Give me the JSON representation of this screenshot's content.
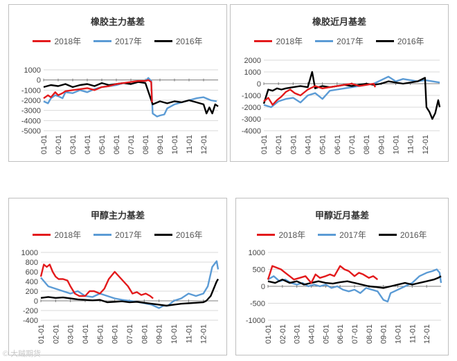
{
  "colors": {
    "s2018": "#e31a1c",
    "s2017": "#5b9bd5",
    "s2016": "#000000",
    "grid": "#d9d9d9",
    "axis": "#7f7f7f"
  },
  "months": [
    "01-01",
    "02-01",
    "03-01",
    "04-01",
    "05-01",
    "06-01",
    "07-01",
    "08-01",
    "09-01",
    "10-01",
    "11-01",
    "12-01"
  ],
  "watermark": "© 大贼期货",
  "chart_data": [
    {
      "type": "line",
      "title": "橡胶主力基差",
      "ylim": [
        -5000,
        1000
      ],
      "yticks": [
        1000,
        0,
        -1000,
        -2000,
        -3000,
        -4000,
        -5000
      ],
      "ytick_labels": [
        "1000",
        "0",
        "-1000",
        "-2000",
        "-3000",
        "-4000",
        "-5000"
      ],
      "series": [
        {
          "name": "2018年",
          "key": "s2018",
          "x": [
            0,
            0.3,
            0.5,
            0.8,
            1.0,
            1.3,
            1.5,
            2.0,
            2.5,
            3.0,
            3.5,
            4.0,
            4.5,
            5.0,
            5.5,
            6.0,
            6.5,
            7.0,
            7.2,
            7.4,
            7.45
          ],
          "y": [
            -1800,
            -1500,
            -1700,
            -1200,
            -1500,
            -1300,
            -1100,
            -1000,
            -900,
            -800,
            -1000,
            -700,
            -600,
            -400,
            -300,
            -200,
            -100,
            -100,
            0,
            -200,
            -2200
          ]
        },
        {
          "name": "2017年",
          "key": "s2017",
          "x": [
            0,
            0.3,
            0.5,
            0.8,
            1.0,
            1.3,
            1.5,
            2.0,
            2.5,
            3.0,
            3.5,
            4.0,
            4.5,
            5.0,
            5.5,
            6.0,
            6.5,
            7.0,
            7.2,
            7.4,
            7.5,
            7.8,
            8.0,
            8.3,
            8.5,
            9.0,
            9.5,
            10.0,
            10.5,
            11.0,
            11.5,
            11.9
          ],
          "y": [
            -2100,
            -2300,
            -1800,
            -1500,
            -1600,
            -1800,
            -1200,
            -1300,
            -1000,
            -1200,
            -900,
            -700,
            -600,
            -500,
            -300,
            -400,
            -200,
            -100,
            200,
            -100,
            -3300,
            -3600,
            -3500,
            -3400,
            -2800,
            -2400,
            -2200,
            -2000,
            -1800,
            -1700,
            -2000,
            -2100
          ]
        },
        {
          "name": "2016年",
          "key": "s2016",
          "x": [
            0,
            0.5,
            1.0,
            1.5,
            2.0,
            2.5,
            3.0,
            3.5,
            4.0,
            4.5,
            5.0,
            5.5,
            6.0,
            6.5,
            7.0,
            7.5,
            8.0,
            8.5,
            9.0,
            9.5,
            10.0,
            10.5,
            11.0,
            11.2,
            11.4,
            11.6,
            11.8,
            12.0
          ],
          "y": [
            -700,
            -500,
            -600,
            -400,
            -700,
            -500,
            -400,
            -600,
            -300,
            -500,
            -400,
            -300,
            -400,
            -200,
            -300,
            -2400,
            -2100,
            -2300,
            -2100,
            -2200,
            -2000,
            -2200,
            -2400,
            -3300,
            -2700,
            -3300,
            -2400,
            -2600
          ]
        }
      ]
    },
    {
      "type": "line",
      "title": "橡胶近月基差",
      "ylim": [
        -4000,
        2000
      ],
      "yticks": [
        2000,
        1000,
        0,
        -1000,
        -2000,
        -3000,
        -4000
      ],
      "ytick_labels": [
        "2000",
        "1000",
        "0",
        "-1000",
        "-2000",
        "-3000",
        "-4000"
      ],
      "series": [
        {
          "name": "2018年",
          "key": "s2018",
          "x": [
            0,
            0.3,
            0.6,
            0.9,
            1.2,
            1.5,
            1.8,
            2.1,
            2.5,
            3.0,
            3.5,
            4.0,
            4.5,
            5.0,
            5.5,
            6.0,
            6.5,
            7.0,
            7.5,
            7.6
          ],
          "y": [
            -1500,
            -1200,
            -1800,
            -1400,
            -1100,
            -700,
            -500,
            -800,
            -1000,
            -500,
            -200,
            -400,
            -300,
            -200,
            -100,
            0,
            -200,
            -100,
            0,
            -300
          ]
        },
        {
          "name": "2017年",
          "key": "s2017",
          "x": [
            0,
            0.5,
            1.0,
            1.5,
            2.0,
            2.5,
            3.0,
            3.5,
            4.0,
            4.5,
            5.0,
            5.5,
            6.0,
            6.5,
            7.0,
            7.5,
            8.0,
            8.5,
            9.0,
            9.5,
            10.0,
            10.5,
            11.0,
            11.5,
            12.0
          ],
          "y": [
            -1800,
            -2000,
            -1500,
            -1300,
            -1200,
            -1600,
            -1000,
            -800,
            -1300,
            -600,
            -500,
            -400,
            -300,
            -200,
            -100,
            0,
            300,
            600,
            200,
            400,
            300,
            200,
            300,
            200,
            100
          ]
        },
        {
          "name": "2016年",
          "key": "s2016",
          "x": [
            0,
            0.3,
            0.6,
            0.9,
            1.2,
            1.5,
            2.0,
            2.5,
            3.0,
            3.3,
            3.5,
            3.7,
            4.0,
            4.5,
            5.0,
            5.5,
            6.0,
            6.5,
            7.0,
            7.5,
            8.0,
            8.5,
            9.0,
            9.5,
            10.0,
            10.5,
            11.0,
            11.1,
            11.3,
            11.5,
            11.7,
            11.9,
            12.0
          ],
          "y": [
            -1700,
            -500,
            -600,
            -400,
            -500,
            -400,
            -300,
            -200,
            -300,
            1000,
            -400,
            -300,
            -200,
            -300,
            -200,
            -100,
            -200,
            -100,
            0,
            -100,
            0,
            200,
            100,
            0,
            100,
            200,
            500,
            -2000,
            -2400,
            -3000,
            -2500,
            -1400,
            -2000
          ]
        }
      ]
    },
    {
      "type": "line",
      "title": "甲醇主力基差",
      "ylim": [
        -400,
        1000
      ],
      "yticks": [
        1000,
        800,
        600,
        400,
        200,
        0,
        -200,
        -400
      ],
      "ytick_labels": [
        "1000",
        "800",
        "600",
        "400",
        "200",
        "0",
        "-200",
        "-400"
      ],
      "series": [
        {
          "name": "2018年",
          "key": "s2018",
          "x": [
            0,
            0.2,
            0.4,
            0.6,
            0.8,
            1.0,
            1.2,
            1.5,
            1.8,
            2.0,
            2.3,
            2.6,
            3.0,
            3.3,
            3.6,
            4.0,
            4.3,
            4.6,
            5.0,
            5.3,
            5.6,
            5.9,
            6.2,
            6.5,
            6.8,
            7.1,
            7.4,
            7.6
          ],
          "y": [
            500,
            750,
            700,
            750,
            600,
            500,
            450,
            450,
            420,
            300,
            150,
            100,
            100,
            200,
            200,
            150,
            250,
            450,
            600,
            500,
            400,
            300,
            150,
            180,
            120,
            150,
            100,
            50
          ]
        },
        {
          "name": "2017年",
          "key": "s2017",
          "x": [
            0,
            0.5,
            1.0,
            1.5,
            2.0,
            2.5,
            3.0,
            3.5,
            4.0,
            4.5,
            5.0,
            5.5,
            6.0,
            6.5,
            7.0,
            7.5,
            8.0,
            8.3,
            8.6,
            9.0,
            9.5,
            10.0,
            10.5,
            11.0,
            11.3,
            11.6,
            11.9,
            12.0
          ],
          "y": [
            480,
            300,
            250,
            200,
            150,
            200,
            100,
            80,
            150,
            100,
            50,
            20,
            0,
            -20,
            -50,
            -80,
            -150,
            -100,
            -100,
            0,
            50,
            150,
            100,
            150,
            300,
            700,
            820,
            650
          ]
        },
        {
          "name": "2016年",
          "key": "s2016",
          "x": [
            0,
            0.5,
            1.0,
            1.5,
            2.0,
            2.5,
            3.0,
            3.5,
            4.0,
            4.5,
            5.0,
            5.5,
            6.0,
            6.5,
            7.0,
            7.5,
            8.0,
            8.5,
            9.0,
            9.5,
            10.0,
            10.5,
            11.0,
            11.2,
            11.5,
            11.7,
            11.9,
            12.0
          ],
          "y": [
            60,
            80,
            60,
            70,
            50,
            30,
            20,
            10,
            20,
            -30,
            -20,
            -10,
            -30,
            -20,
            -40,
            -60,
            -80,
            -100,
            -80,
            -60,
            -50,
            -40,
            -30,
            0,
            100,
            250,
            400,
            450
          ]
        }
      ]
    },
    {
      "type": "line",
      "title": "甲醇近月基差",
      "ylim": [
        -1000,
        1000
      ],
      "yticks": [
        1000,
        500,
        0,
        -500,
        -1000
      ],
      "ytick_labels": [
        "1000",
        "500",
        "0",
        "-500",
        "-1000"
      ],
      "series": [
        {
          "name": "2018年",
          "key": "s2018",
          "x": [
            0,
            0.3,
            0.6,
            0.9,
            1.2,
            1.5,
            1.8,
            2.2,
            2.6,
            3.0,
            3.3,
            3.6,
            4.0,
            4.3,
            4.6,
            5.0,
            5.3,
            5.6,
            6.0,
            6.3,
            6.6,
            7.0,
            7.3,
            7.6
          ],
          "y": [
            200,
            600,
            550,
            500,
            400,
            300,
            200,
            250,
            300,
            100,
            350,
            250,
            300,
            350,
            300,
            600,
            500,
            450,
            300,
            400,
            350,
            250,
            300,
            200
          ]
        },
        {
          "name": "2017年",
          "key": "s2017",
          "x": [
            0,
            0.4,
            0.8,
            1.2,
            1.6,
            2.0,
            2.4,
            2.8,
            3.2,
            3.6,
            4.0,
            4.4,
            4.8,
            5.2,
            5.6,
            6.0,
            6.4,
            6.8,
            7.2,
            7.6,
            8.0,
            8.3,
            8.5,
            9.0,
            9.5,
            10.0,
            10.5,
            11.0,
            11.4,
            11.7,
            11.9,
            12.0
          ],
          "y": [
            200,
            300,
            150,
            200,
            100,
            50,
            100,
            0,
            50,
            0,
            50,
            -50,
            0,
            -100,
            -150,
            -100,
            -200,
            -50,
            -100,
            -150,
            -400,
            -450,
            -200,
            -100,
            0,
            100,
            300,
            400,
            450,
            500,
            400,
            100
          ]
        },
        {
          "name": "2016年",
          "key": "s2016",
          "x": [
            0,
            0.5,
            1.0,
            1.5,
            2.0,
            2.5,
            3.0,
            3.5,
            4.0,
            4.5,
            5.0,
            5.5,
            6.0,
            6.5,
            7.0,
            7.5,
            8.0,
            8.5,
            9.0,
            9.5,
            10.0,
            10.5,
            11.0,
            11.5,
            11.8,
            12.0
          ],
          "y": [
            150,
            100,
            200,
            100,
            150,
            50,
            100,
            150,
            100,
            80,
            120,
            150,
            100,
            50,
            0,
            -20,
            -50,
            0,
            50,
            100,
            50,
            100,
            150,
            200,
            250,
            300
          ]
        }
      ]
    }
  ]
}
